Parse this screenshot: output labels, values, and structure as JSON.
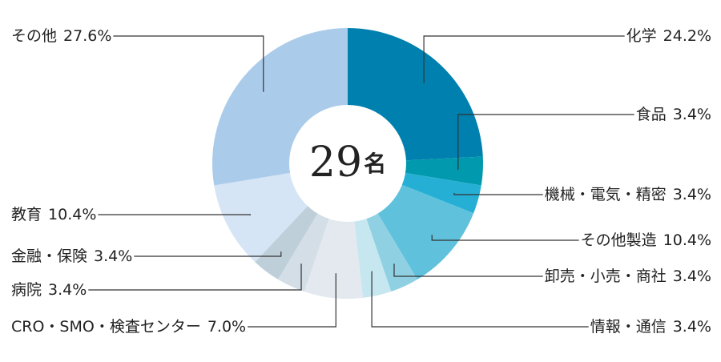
{
  "chart_data": {
    "type": "donut",
    "center_text": "29",
    "center_unit": "名",
    "categories": [
      "化学",
      "食品",
      "機械・電気・精密",
      "その他製造",
      "卸売・小売・商社",
      "情報・通信",
      "CRO・SMO・検査センター",
      "病院",
      "金融・保険",
      "教育",
      "その他"
    ],
    "values": [
      24.2,
      3.4,
      3.4,
      10.4,
      3.4,
      3.4,
      7.0,
      3.4,
      3.4,
      10.4,
      27.6
    ],
    "value_labels": [
      "24.2%",
      "3.4%",
      "3.4%",
      "10.4%",
      "3.4%",
      "3.4%",
      "7.0%",
      "3.4%",
      "3.4%",
      "10.4%",
      "27.6%"
    ],
    "colors": [
      "#0080ae",
      "#0099ad",
      "#26afd5",
      "#5fc1dc",
      "#8fd0e2",
      "#c6e6f0",
      "#e3e9ee",
      "#d3dee6",
      "#bfcfda",
      "#d6e5f5",
      "#abcbea"
    ]
  }
}
